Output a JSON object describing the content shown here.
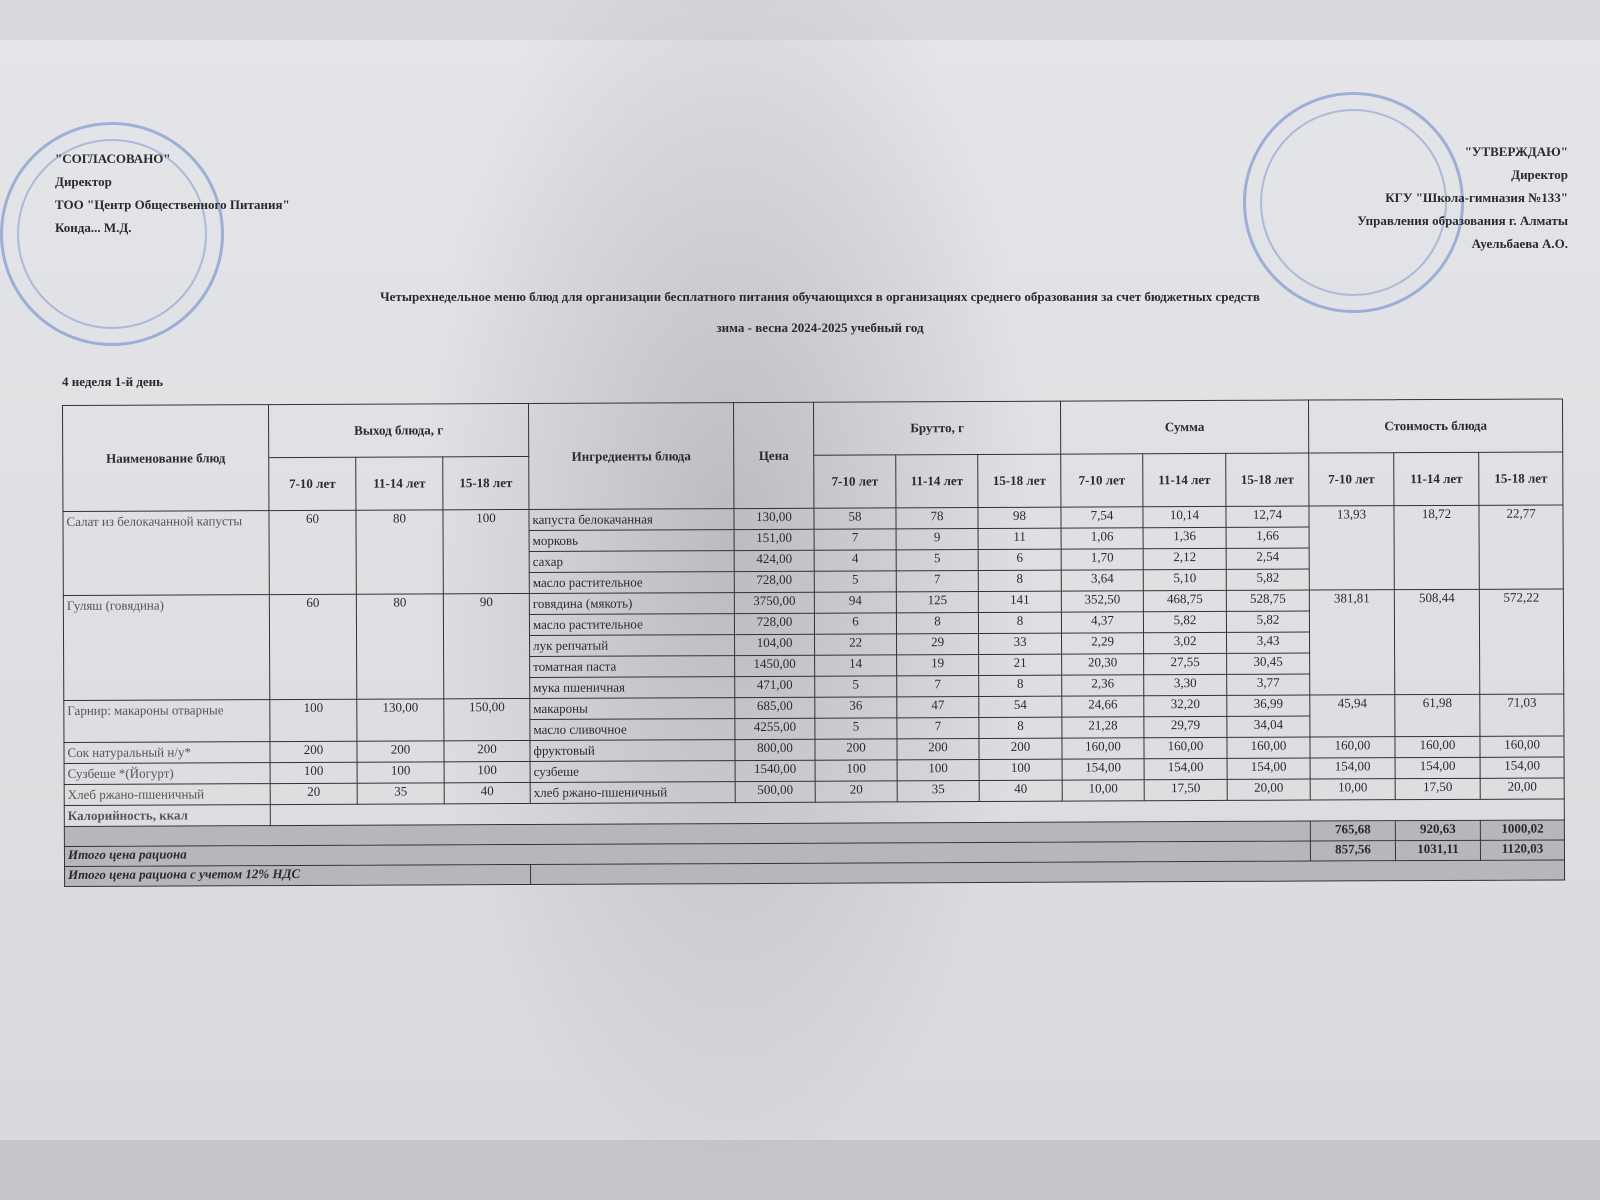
{
  "left_block": {
    "line1": "\"СОГЛАСОВАНО\"",
    "line2": "Директор",
    "line3": "ТОО \"Центр Общественного Питания\"",
    "line4": "Конда... М.Д."
  },
  "right_block": {
    "line1": "\"УТВЕРЖДАЮ\"",
    "line2": "Директор",
    "line3": "КГУ \"Школа-гимназия №133\"",
    "line4": "Управления образования г. Алматы",
    "line5": "Ауельбаева А.О."
  },
  "title": "Четырехнедельное меню блюд для организации бесплатного питания обучающихся в организациях среднего образования за счет бюджетных средств",
  "subtitle": "зима - весна 2024-2025 учебный год",
  "week_day": "4 неделя 1-й день",
  "headers": {
    "dish": "Наименование блюд",
    "output": "Выход блюда, г",
    "ingredients": "Ингредиенты блюда",
    "price": "Цена",
    "brutto": "Брутто, г",
    "sum": "Сумма",
    "cost": "Стоимость блюда",
    "ages": [
      "7-10 лет",
      "11-14 лет",
      "15-18 лет"
    ]
  },
  "dishes": [
    {
      "name": "Салат из белокачанной капусты",
      "output": [
        "60",
        "80",
        "100"
      ],
      "cost": [
        "13,93",
        "18,72",
        "22,77"
      ],
      "ingredients": [
        {
          "name": "капуста белокачанная",
          "price": "130,00",
          "brutto": [
            "58",
            "78",
            "98"
          ],
          "sum": [
            "7,54",
            "10,14",
            "12,74"
          ]
        },
        {
          "name": "морковь",
          "price": "151,00",
          "brutto": [
            "7",
            "9",
            "11"
          ],
          "sum": [
            "1,06",
            "1,36",
            "1,66"
          ]
        },
        {
          "name": "сахар",
          "price": "424,00",
          "brutto": [
            "4",
            "5",
            "6"
          ],
          "sum": [
            "1,70",
            "2,12",
            "2,54"
          ]
        },
        {
          "name": "масло растительное",
          "price": "728,00",
          "brutto": [
            "5",
            "7",
            "8"
          ],
          "sum": [
            "3,64",
            "5,10",
            "5,82"
          ]
        }
      ]
    },
    {
      "name": "Гуляш (говядина)",
      "output": [
        "60",
        "80",
        "90"
      ],
      "cost": [
        "381,81",
        "508,44",
        "572,22"
      ],
      "ingredients": [
        {
          "name": "говядина (мякоть)",
          "price": "3750,00",
          "brutto": [
            "94",
            "125",
            "141"
          ],
          "sum": [
            "352,50",
            "468,75",
            "528,75"
          ]
        },
        {
          "name": "масло растительное",
          "price": "728,00",
          "brutto": [
            "6",
            "8",
            "8"
          ],
          "sum": [
            "4,37",
            "5,82",
            "5,82"
          ]
        },
        {
          "name": "лук репчатый",
          "price": "104,00",
          "brutto": [
            "22",
            "29",
            "33"
          ],
          "sum": [
            "2,29",
            "3,02",
            "3,43"
          ]
        },
        {
          "name": "томатная паста",
          "price": "1450,00",
          "brutto": [
            "14",
            "19",
            "21"
          ],
          "sum": [
            "20,30",
            "27,55",
            "30,45"
          ]
        },
        {
          "name": "мука пшеничная",
          "price": "471,00",
          "brutto": [
            "5",
            "7",
            "8"
          ],
          "sum": [
            "2,36",
            "3,30",
            "3,77"
          ]
        }
      ]
    },
    {
      "name": "Гарнир: макароны отварные",
      "output": [
        "100",
        "130,00",
        "150,00"
      ],
      "cost": [
        "45,94",
        "61,98",
        "71,03"
      ],
      "ingredients": [
        {
          "name": "макароны",
          "price": "685,00",
          "brutto": [
            "36",
            "47",
            "54"
          ],
          "sum": [
            "24,66",
            "32,20",
            "36,99"
          ]
        },
        {
          "name": "масло сливочное",
          "price": "4255,00",
          "brutto": [
            "5",
            "7",
            "8"
          ],
          "sum": [
            "21,28",
            "29,79",
            "34,04"
          ]
        }
      ]
    },
    {
      "name": "Сок натуральный н/у*",
      "output": [
        "200",
        "200",
        "200"
      ],
      "cost": [
        "160,00",
        "160,00",
        "160,00"
      ],
      "ingredients": [
        {
          "name": "фруктовый",
          "price": "800,00",
          "brutto": [
            "200",
            "200",
            "200"
          ],
          "sum": [
            "160,00",
            "160,00",
            "160,00"
          ]
        }
      ]
    },
    {
      "name": "Сузбеше *(Йогурт)",
      "output": [
        "100",
        "100",
        "100"
      ],
      "cost": [
        "154,00",
        "154,00",
        "154,00"
      ],
      "ingredients": [
        {
          "name": "сузбеше",
          "price": "1540,00",
          "brutto": [
            "100",
            "100",
            "100"
          ],
          "sum": [
            "154,00",
            "154,00",
            "154,00"
          ]
        }
      ]
    },
    {
      "name": "Хлеб ржано-пшеничный",
      "output": [
        "20",
        "35",
        "40"
      ],
      "cost": [
        "10,00",
        "17,50",
        "20,00"
      ],
      "ingredients": [
        {
          "name": "хлеб ржано-пшеничный",
          "price": "500,00",
          "brutto": [
            "20",
            "35",
            "40"
          ],
          "sum": [
            "10,00",
            "17,50",
            "20,00"
          ]
        }
      ]
    }
  ],
  "calories_label": "Калорийность, ккал",
  "totals": {
    "subtotal": [
      "765,68",
      "920,63",
      "1000,02"
    ],
    "ration_label": "Итого цена рациона",
    "ration": [
      "857,56",
      "1031,11",
      "1120,03"
    ],
    "vat_label": "Итого цена рациона с учетом 12% НДС"
  },
  "colors": {
    "stamp": "#466ebe",
    "grey_row": "#b5b7ba"
  }
}
